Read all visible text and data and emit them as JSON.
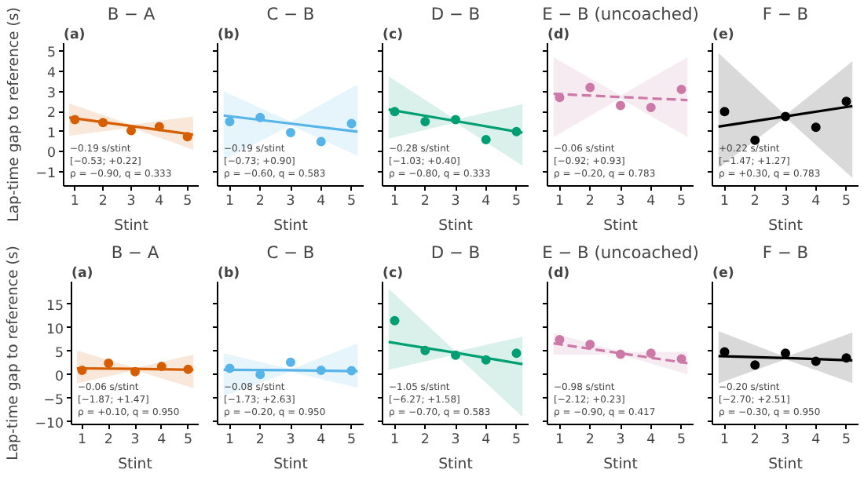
{
  "chart_data": [
    {
      "type": "scatter",
      "title": "B − A",
      "subtitle": "(a)",
      "xlabel": "Stint",
      "ylabel": "Lap-time gap to reference (s)",
      "annotations": [
        "−0.19 s/stint",
        "[−0.53; +0.22]",
        "ρ = −0.90, q = 0.333"
      ],
      "xlim": [
        0.6,
        5.4
      ],
      "xticks": [
        1,
        2,
        3,
        4,
        5
      ],
      "ylim": [
        -1.7,
        5.4
      ],
      "yticks": [
        -1,
        0,
        1,
        2,
        3,
        4,
        5
      ],
      "series": [
        {
          "marker": "circle",
          "color": "#d55e00",
          "x": [
            1,
            2,
            3,
            4,
            5
          ],
          "values": [
            1.6,
            1.45,
            1.05,
            1.25,
            0.75
          ]
        },
        {
          "type": "line",
          "marker": "none",
          "color": "#d55e00",
          "line_style": "solid",
          "x": [
            0.8,
            3,
            5.2
          ],
          "values": [
            1.7,
            1.28,
            0.85
          ],
          "lower": [
            0.8,
            1.2,
            0.1
          ],
          "upper": [
            2.4,
            1.35,
            1.75
          ]
        }
      ]
    },
    {
      "type": "scatter",
      "title": "C − B",
      "subtitle": "(b)",
      "xlabel": "Stint",
      "annotations": [
        "−0.19 s/stint",
        "[−0.73; +0.90]",
        "ρ = −0.60, q = 0.583"
      ],
      "xlim": [
        0.6,
        5.4
      ],
      "xticks": [
        1,
        2,
        3,
        4,
        5
      ],
      "ylim": [
        -1.7,
        5.4
      ],
      "yticks": [
        -1,
        0,
        1,
        2,
        3,
        4,
        5
      ],
      "tick_labels": "x",
      "series": [
        {
          "marker": "circle",
          "color": "#56b4e9",
          "x": [
            1,
            2,
            3,
            4,
            5
          ],
          "values": [
            1.5,
            1.7,
            0.95,
            0.5,
            1.4
          ]
        },
        {
          "type": "line",
          "marker": "none",
          "color": "#56b4e9",
          "line_style": "solid",
          "x": [
            0.8,
            3,
            5.2
          ],
          "values": [
            1.8,
            1.4,
            1.0
          ],
          "lower": [
            -0.4,
            1.3,
            -0.2
          ],
          "upper": [
            3.0,
            1.5,
            3.35
          ]
        }
      ]
    },
    {
      "type": "scatter",
      "title": "D − B",
      "subtitle": "(c)",
      "xlabel": "Stint",
      "annotations": [
        "−0.28 s/stint",
        "[−1.03; +0.40]",
        "ρ = −0.80, q = 0.333"
      ],
      "xlim": [
        0.6,
        5.4
      ],
      "xticks": [
        1,
        2,
        3,
        4,
        5
      ],
      "ylim": [
        -1.7,
        5.4
      ],
      "yticks": [
        -1,
        0,
        1,
        2,
        3,
        4,
        5
      ],
      "tick_labels": "x",
      "series": [
        {
          "marker": "circle",
          "color": "#009e73",
          "x": [
            1,
            2,
            3,
            4,
            5
          ],
          "values": [
            2.0,
            1.5,
            1.6,
            0.6,
            1.0
          ]
        },
        {
          "type": "line",
          "marker": "none",
          "color": "#009e73",
          "line_style": "solid",
          "x": [
            0.8,
            3,
            5.2
          ],
          "values": [
            2.1,
            1.53,
            0.95
          ],
          "lower": [
            0.65,
            1.45,
            -0.7
          ],
          "upper": [
            3.75,
            1.6,
            2.37
          ]
        }
      ]
    },
    {
      "type": "scatter",
      "title": "E − B (uncoached)",
      "subtitle": "(d)",
      "xlabel": "Stint",
      "annotations": [
        "−0.06 s/stint",
        "[−0.92; +0.93]",
        "ρ = −0.20, q = 0.783"
      ],
      "xlim": [
        0.6,
        5.4
      ],
      "xticks": [
        1,
        2,
        3,
        4,
        5
      ],
      "ylim": [
        -1.7,
        5.4
      ],
      "yticks": [
        -1,
        0,
        1,
        2,
        3,
        4,
        5
      ],
      "tick_labels": "x",
      "series": [
        {
          "marker": "circle",
          "color": "#cc79a7",
          "x": [
            1,
            2,
            3,
            4,
            5
          ],
          "values": [
            2.7,
            3.2,
            2.3,
            2.2,
            3.1
          ]
        },
        {
          "type": "line",
          "marker": "none",
          "color": "#cc79a7",
          "line_style": "dashed",
          "x": [
            0.8,
            3,
            5.2
          ],
          "values": [
            2.88,
            2.72,
            2.57
          ],
          "lower": [
            0.73,
            2.65,
            0.73
          ],
          "upper": [
            4.7,
            2.8,
            4.7
          ]
        }
      ]
    },
    {
      "type": "scatter",
      "title": "F − B",
      "subtitle": "(e)",
      "xlabel": "Stint",
      "annotations": [
        "+0.22 s/stint",
        "[−1.47; +1.27]",
        "ρ = +0.30, q = 0.783"
      ],
      "xlim": [
        0.6,
        5.4
      ],
      "xticks": [
        1,
        2,
        3,
        4,
        5
      ],
      "ylim": [
        -1.7,
        5.4
      ],
      "yticks": [
        -1,
        0,
        1,
        2,
        3,
        4,
        5
      ],
      "tick_labels": "x",
      "series": [
        {
          "marker": "circle",
          "color": "#000000",
          "x": [
            1,
            2,
            3,
            4,
            5
          ],
          "values": [
            2.0,
            0.57,
            1.75,
            1.22,
            2.5
          ]
        },
        {
          "type": "line",
          "marker": "none",
          "color": "#000000",
          "line_style": "solid",
          "x": [
            0.8,
            3,
            5.2
          ],
          "values": [
            1.25,
            1.76,
            2.27
          ],
          "lower": [
            -0.8,
            1.7,
            -1.3
          ],
          "upper": [
            4.9,
            1.82,
            4.5
          ]
        }
      ]
    },
    {
      "type": "scatter",
      "title": "B − A",
      "subtitle": "(a)",
      "xlabel": "Stint",
      "ylabel": "Lap-time gap to reference (s)",
      "annotations": [
        "−0.06 s/stint",
        "[−1.87; +1.47]",
        "ρ = +0.10, q = 0.950"
      ],
      "xlim": [
        0.6,
        5.4
      ],
      "xticks": [
        1,
        2,
        3,
        4,
        5
      ],
      "ylim": [
        -10.5,
        19.8
      ],
      "yticks": [
        -10,
        -5,
        0,
        5,
        10,
        15
      ],
      "series": [
        {
          "marker": "circle",
          "color": "#d55e00",
          "x": [
            1,
            2,
            3,
            4,
            5
          ],
          "values": [
            1.0,
            2.5,
            0.7,
            1.8,
            1.2
          ]
        },
        {
          "type": "line",
          "marker": "none",
          "color": "#d55e00",
          "line_style": "solid",
          "x": [
            0.8,
            3,
            5.2
          ],
          "values": [
            1.4,
            1.3,
            1.1
          ],
          "lower": [
            -1.8,
            1.0,
            -2.8
          ],
          "upper": [
            5.2,
            1.5,
            4.3
          ]
        }
      ]
    },
    {
      "type": "scatter",
      "title": "C − B",
      "subtitle": "(b)",
      "xlabel": "Stint",
      "annotations": [
        "−0.08 s/stint",
        "[−1.73; +2.63]",
        "ρ = −0.20, q = 0.950"
      ],
      "xlim": [
        0.6,
        5.4
      ],
      "xticks": [
        1,
        2,
        3,
        4,
        5
      ],
      "ylim": [
        -10.5,
        19.8
      ],
      "yticks": [
        -10,
        -5,
        0,
        5,
        10,
        15
      ],
      "tick_labels": "x",
      "series": [
        {
          "marker": "circle",
          "color": "#56b4e9",
          "x": [
            1,
            2,
            3,
            4,
            5
          ],
          "values": [
            1.4,
            0.1,
            2.7,
            1.0,
            0.9
          ]
        },
        {
          "type": "line",
          "marker": "none",
          "color": "#56b4e9",
          "line_style": "solid",
          "x": [
            0.8,
            3,
            5.2
          ],
          "values": [
            1.1,
            1.0,
            0.8
          ],
          "lower": [
            -4.5,
            0.7,
            -2.7
          ],
          "upper": [
            4.6,
            1.2,
            6.7
          ]
        }
      ]
    },
    {
      "type": "scatter",
      "title": "D − B",
      "subtitle": "(c)",
      "xlabel": "Stint",
      "annotations": [
        "−1.05 s/stint",
        "[−6.27; +1.58]",
        "ρ = −0.70, q = 0.583"
      ],
      "xlim": [
        0.6,
        5.4
      ],
      "xticks": [
        1,
        2,
        3,
        4,
        5
      ],
      "ylim": [
        -10.5,
        19.8
      ],
      "yticks": [
        -10,
        -5,
        0,
        5,
        10,
        15
      ],
      "tick_labels": "x",
      "series": [
        {
          "marker": "circle",
          "color": "#009e73",
          "x": [
            1,
            2,
            3,
            4,
            5
          ],
          "values": [
            11.5,
            5.2,
            4.2,
            3.2,
            4.6
          ]
        },
        {
          "type": "line",
          "marker": "none",
          "color": "#009e73",
          "line_style": "solid",
          "x": [
            0.8,
            3,
            5.2
          ],
          "values": [
            7.0,
            4.7,
            2.3
          ],
          "lower": [
            1.1,
            4.3,
            -8.9
          ],
          "upper": [
            18.3,
            5.0,
            8.1
          ]
        }
      ]
    },
    {
      "type": "scatter",
      "title": "E − B (uncoached)",
      "subtitle": "(d)",
      "xlabel": "Stint",
      "annotations": [
        "−0.98 s/stint",
        "[−2.12; +0.23]",
        "ρ = −0.90, q = 0.417"
      ],
      "xlim": [
        0.6,
        5.4
      ],
      "xticks": [
        1,
        2,
        3,
        4,
        5
      ],
      "ylim": [
        -10.5,
        19.8
      ],
      "yticks": [
        -10,
        -5,
        0,
        5,
        10,
        15
      ],
      "tick_labels": "x",
      "series": [
        {
          "marker": "circle",
          "color": "#cc79a7",
          "x": [
            1,
            2,
            3,
            4,
            5
          ],
          "values": [
            7.5,
            6.5,
            4.4,
            4.6,
            3.4
          ]
        },
        {
          "type": "line",
          "marker": "none",
          "color": "#cc79a7",
          "line_style": "dashed",
          "x": [
            0.8,
            3,
            5.2
          ],
          "values": [
            6.7,
            4.6,
            2.5
          ],
          "lower": [
            4.3,
            4.3,
            0.1
          ],
          "upper": [
            8.9,
            4.9,
            4.9
          ]
        }
      ]
    },
    {
      "type": "scatter",
      "title": "F − B",
      "subtitle": "(e)",
      "xlabel": "Stint",
      "annotations": [
        "−0.20 s/stint",
        "[−2.70; +2.51]",
        "ρ = −0.30, q = 0.950"
      ],
      "xlim": [
        0.6,
        5.4
      ],
      "xticks": [
        1,
        2,
        3,
        4,
        5
      ],
      "ylim": [
        -10.5,
        19.8
      ],
      "yticks": [
        -10,
        -5,
        0,
        5,
        10,
        15
      ],
      "tick_labels": "x",
      "series": [
        {
          "marker": "circle",
          "color": "#000000",
          "x": [
            1,
            2,
            3,
            4,
            5
          ],
          "values": [
            4.9,
            2.1,
            4.6,
            2.9,
            3.6
          ]
        },
        {
          "type": "line",
          "marker": "none",
          "color": "#000000",
          "line_style": "solid",
          "x": [
            0.8,
            3,
            5.2
          ],
          "values": [
            4.0,
            3.6,
            3.1
          ],
          "lower": [
            -1.8,
            3.3,
            -1.7
          ],
          "upper": [
            9.3,
            3.8,
            9.0
          ]
        }
      ]
    }
  ]
}
